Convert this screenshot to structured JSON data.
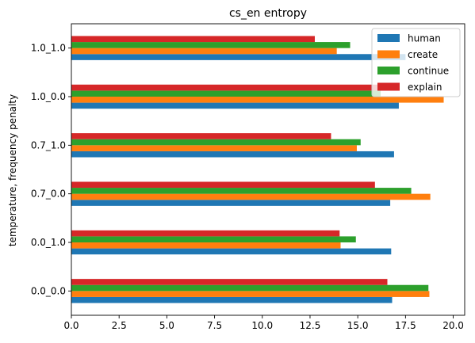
{
  "chart_data": {
    "type": "bar",
    "orientation": "horizontal",
    "title": "cs_en entropy",
    "xlabel": "",
    "ylabel": "temperature, frequency penalty",
    "categories": [
      "0.0_0.0",
      "0.0_1.0",
      "0.7_0.0",
      "0.7_1.0",
      "1.0_0.0",
      "1.0_1.0"
    ],
    "xlim": [
      0,
      20.6
    ],
    "xticks": [
      0.0,
      2.5,
      5.0,
      7.5,
      10.0,
      12.5,
      15.0,
      17.5,
      20.0
    ],
    "xtick_labels": [
      "0.0",
      "2.5",
      "5.0",
      "7.5",
      "10.0",
      "12.5",
      "15.0",
      "17.5",
      "20.0"
    ],
    "grid": false,
    "legend_position": "top-right",
    "series": [
      {
        "name": "human",
        "color": "#1f77b4",
        "values": [
          16.8,
          16.75,
          16.7,
          16.9,
          17.15,
          17.5
        ]
      },
      {
        "name": "create",
        "color": "#ff7f0e",
        "values": [
          18.75,
          14.1,
          18.8,
          14.95,
          19.5,
          13.9
        ]
      },
      {
        "name": "continue",
        "color": "#2ca02c",
        "values": [
          18.7,
          14.9,
          17.8,
          15.15,
          16.2,
          14.6
        ]
      },
      {
        "name": "explain",
        "color": "#d62728",
        "values": [
          16.55,
          14.05,
          15.9,
          13.6,
          16.1,
          12.75
        ]
      }
    ]
  }
}
